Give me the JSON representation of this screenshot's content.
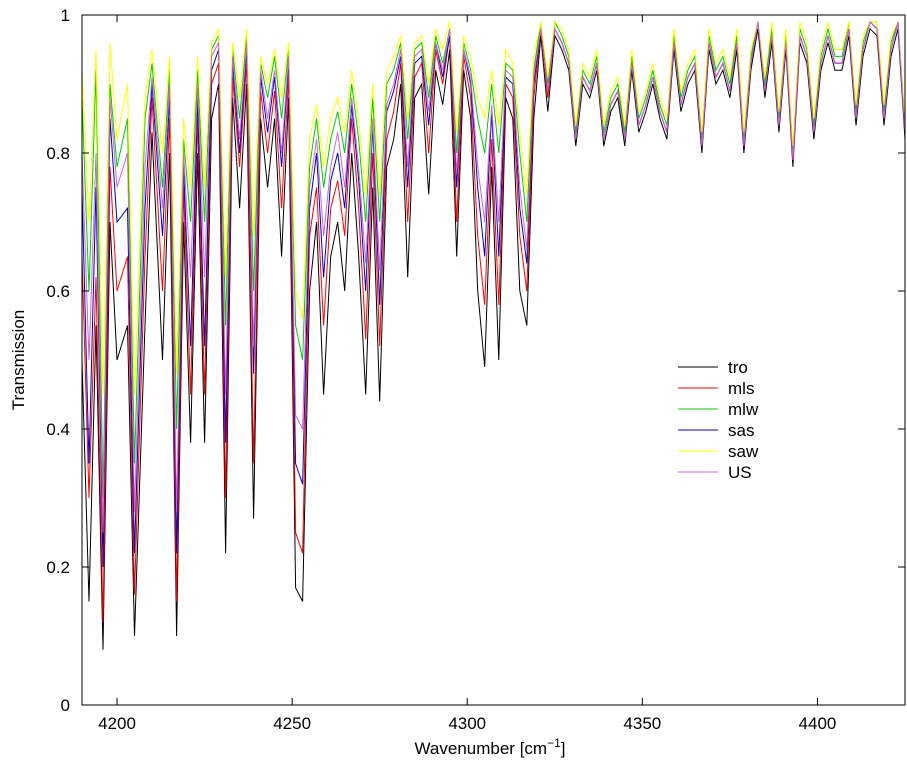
{
  "chart_data": {
    "type": "line",
    "title": "",
    "xlabel": "Wavenumber [cm",
    "xlabel_sup": "−1",
    "xlabel_end": "]",
    "ylabel": "Transmission",
    "xlim": [
      4190,
      4425
    ],
    "ylim": [
      0,
      1
    ],
    "x_ticks": [
      4200,
      4250,
      4300,
      4350,
      4400
    ],
    "y_ticks": [
      0,
      0.2,
      0.4,
      0.6,
      0.8,
      1
    ],
    "y_tick_labels": [
      "0",
      "0.2",
      "0.4",
      "0.6",
      "0.8",
      "1"
    ],
    "grid": false,
    "legend_position": "center-right",
    "x": [
      4190,
      4192,
      4194,
      4196,
      4198,
      4200,
      4203,
      4205,
      4208,
      4210,
      4213,
      4215,
      4217,
      4219,
      4221,
      4223,
      4225,
      4227,
      4229,
      4231,
      4233,
      4235,
      4237,
      4239,
      4241,
      4243,
      4245,
      4247,
      4249,
      4251,
      4253,
      4255,
      4257,
      4259,
      4261,
      4263,
      4265,
      4267,
      4269,
      4271,
      4273,
      4275,
      4277,
      4279,
      4281,
      4283,
      4285,
      4287,
      4289,
      4291,
      4293,
      4295,
      4297,
      4299,
      4301,
      4303,
      4305,
      4307,
      4309,
      4311,
      4313,
      4315,
      4317,
      4319,
      4321,
      4323,
      4325,
      4327,
      4329,
      4331,
      4333,
      4335,
      4337,
      4339,
      4341,
      4343,
      4345,
      4347,
      4349,
      4351,
      4353,
      4355,
      4357,
      4359,
      4361,
      4363,
      4365,
      4367,
      4369,
      4371,
      4373,
      4375,
      4377,
      4379,
      4381,
      4383,
      4385,
      4387,
      4389,
      4391,
      4393,
      4395,
      4397,
      4399,
      4401,
      4403,
      4405,
      4407,
      4409,
      4411,
      4413,
      4415,
      4417,
      4419,
      4421,
      4423,
      4425
    ],
    "series": [
      {
        "name": "tro",
        "color": "#000000",
        "values": [
          0.5,
          0.15,
          0.55,
          0.08,
          0.7,
          0.5,
          0.55,
          0.1,
          0.55,
          0.83,
          0.5,
          0.8,
          0.1,
          0.7,
          0.38,
          0.8,
          0.38,
          0.85,
          0.9,
          0.22,
          0.88,
          0.72,
          0.9,
          0.27,
          0.85,
          0.75,
          0.85,
          0.65,
          0.88,
          0.17,
          0.15,
          0.6,
          0.7,
          0.45,
          0.65,
          0.7,
          0.6,
          0.8,
          0.65,
          0.45,
          0.75,
          0.44,
          0.78,
          0.82,
          0.9,
          0.62,
          0.88,
          0.9,
          0.74,
          0.92,
          0.87,
          0.95,
          0.65,
          0.92,
          0.85,
          0.6,
          0.49,
          0.78,
          0.5,
          0.88,
          0.85,
          0.6,
          0.55,
          0.85,
          0.97,
          0.86,
          0.97,
          0.95,
          0.92,
          0.81,
          0.9,
          0.88,
          0.92,
          0.81,
          0.86,
          0.88,
          0.81,
          0.92,
          0.83,
          0.86,
          0.9,
          0.85,
          0.82,
          0.95,
          0.86,
          0.9,
          0.92,
          0.8,
          0.95,
          0.9,
          0.92,
          0.88,
          0.95,
          0.8,
          0.92,
          0.98,
          0.88,
          0.96,
          0.83,
          0.95,
          0.78,
          0.96,
          0.93,
          0.82,
          0.92,
          0.96,
          0.92,
          0.92,
          0.97,
          0.84,
          0.94,
          0.98,
          0.97,
          0.84,
          0.94,
          0.98,
          0.82
        ]
      },
      {
        "name": "mls",
        "color": "#ff0000",
        "values": [
          0.65,
          0.3,
          0.62,
          0.12,
          0.78,
          0.6,
          0.65,
          0.16,
          0.65,
          0.88,
          0.6,
          0.85,
          0.15,
          0.75,
          0.45,
          0.85,
          0.45,
          0.9,
          0.93,
          0.3,
          0.91,
          0.78,
          0.93,
          0.35,
          0.89,
          0.8,
          0.89,
          0.72,
          0.91,
          0.25,
          0.22,
          0.68,
          0.75,
          0.55,
          0.72,
          0.76,
          0.68,
          0.85,
          0.72,
          0.53,
          0.8,
          0.52,
          0.82,
          0.86,
          0.93,
          0.7,
          0.91,
          0.93,
          0.8,
          0.95,
          0.9,
          0.97,
          0.7,
          0.94,
          0.88,
          0.68,
          0.58,
          0.82,
          0.58,
          0.9,
          0.88,
          0.68,
          0.6,
          0.88,
          0.98,
          0.88,
          0.98,
          0.96,
          0.93,
          0.82,
          0.91,
          0.89,
          0.93,
          0.82,
          0.87,
          0.89,
          0.82,
          0.93,
          0.84,
          0.87,
          0.91,
          0.86,
          0.83,
          0.96,
          0.87,
          0.91,
          0.93,
          0.81,
          0.96,
          0.91,
          0.93,
          0.89,
          0.96,
          0.81,
          0.93,
          0.99,
          0.89,
          0.97,
          0.84,
          0.96,
          0.79,
          0.97,
          0.94,
          0.83,
          0.93,
          0.97,
          0.93,
          0.93,
          0.98,
          0.85,
          0.95,
          0.99,
          0.98,
          0.85,
          0.95,
          0.99,
          0.83
        ]
      },
      {
        "name": "mlw",
        "color": "#00cc00",
        "values": [
          0.88,
          0.6,
          0.92,
          0.3,
          0.9,
          0.78,
          0.85,
          0.35,
          0.85,
          0.93,
          0.75,
          0.92,
          0.4,
          0.82,
          0.7,
          0.92,
          0.7,
          0.95,
          0.97,
          0.55,
          0.95,
          0.85,
          0.97,
          0.6,
          0.93,
          0.88,
          0.94,
          0.85,
          0.95,
          0.55,
          0.5,
          0.78,
          0.85,
          0.75,
          0.82,
          0.86,
          0.8,
          0.9,
          0.82,
          0.7,
          0.88,
          0.7,
          0.9,
          0.92,
          0.96,
          0.82,
          0.95,
          0.96,
          0.88,
          0.97,
          0.93,
          0.98,
          0.8,
          0.96,
          0.92,
          0.85,
          0.8,
          0.9,
          0.8,
          0.93,
          0.92,
          0.8,
          0.7,
          0.92,
          0.99,
          0.9,
          0.99,
          0.97,
          0.94,
          0.83,
          0.92,
          0.9,
          0.94,
          0.83,
          0.88,
          0.9,
          0.83,
          0.94,
          0.85,
          0.88,
          0.92,
          0.87,
          0.84,
          0.97,
          0.88,
          0.92,
          0.94,
          0.82,
          0.97,
          0.92,
          0.94,
          0.9,
          0.97,
          0.82,
          0.94,
          0.99,
          0.9,
          0.98,
          0.85,
          0.97,
          0.8,
          0.98,
          0.95,
          0.84,
          0.94,
          0.98,
          0.94,
          0.94,
          0.99,
          0.86,
          0.96,
          0.99,
          0.99,
          0.86,
          0.96,
          0.99,
          0.84
        ]
      },
      {
        "name": "sas",
        "color": "#0000cc",
        "values": [
          0.75,
          0.35,
          0.75,
          0.2,
          0.85,
          0.7,
          0.72,
          0.22,
          0.72,
          0.9,
          0.68,
          0.88,
          0.22,
          0.78,
          0.52,
          0.88,
          0.52,
          0.92,
          0.95,
          0.38,
          0.93,
          0.8,
          0.95,
          0.48,
          0.91,
          0.83,
          0.91,
          0.78,
          0.93,
          0.35,
          0.32,
          0.72,
          0.8,
          0.62,
          0.76,
          0.8,
          0.72,
          0.87,
          0.76,
          0.6,
          0.84,
          0.58,
          0.86,
          0.89,
          0.94,
          0.75,
          0.93,
          0.94,
          0.84,
          0.96,
          0.91,
          0.97,
          0.75,
          0.95,
          0.9,
          0.75,
          0.65,
          0.86,
          0.65,
          0.91,
          0.9,
          0.72,
          0.64,
          0.9,
          0.98,
          0.89,
          0.98,
          0.96,
          0.93,
          0.82,
          0.91,
          0.89,
          0.93,
          0.82,
          0.87,
          0.89,
          0.82,
          0.93,
          0.84,
          0.87,
          0.91,
          0.86,
          0.83,
          0.96,
          0.87,
          0.91,
          0.93,
          0.81,
          0.96,
          0.91,
          0.93,
          0.89,
          0.96,
          0.81,
          0.93,
          0.99,
          0.89,
          0.97,
          0.84,
          0.96,
          0.79,
          0.97,
          0.94,
          0.83,
          0.93,
          0.97,
          0.93,
          0.93,
          0.98,
          0.85,
          0.95,
          0.99,
          0.98,
          0.85,
          0.95,
          0.99,
          0.83
        ]
      },
      {
        "name": "saw",
        "color": "#ffff00",
        "values": [
          0.92,
          0.7,
          0.95,
          0.45,
          0.96,
          0.82,
          0.9,
          0.45,
          0.88,
          0.95,
          0.8,
          0.94,
          0.48,
          0.85,
          0.75,
          0.94,
          0.75,
          0.96,
          0.98,
          0.62,
          0.96,
          0.88,
          0.98,
          0.68,
          0.94,
          0.9,
          0.95,
          0.88,
          0.96,
          0.6,
          0.56,
          0.82,
          0.87,
          0.78,
          0.85,
          0.88,
          0.83,
          0.92,
          0.85,
          0.74,
          0.9,
          0.74,
          0.92,
          0.94,
          0.97,
          0.85,
          0.96,
          0.97,
          0.9,
          0.98,
          0.95,
          0.99,
          0.83,
          0.97,
          0.94,
          0.88,
          0.85,
          0.92,
          0.84,
          0.95,
          0.93,
          0.83,
          0.74,
          0.94,
          0.99,
          0.91,
          0.99,
          0.98,
          0.95,
          0.84,
          0.93,
          0.91,
          0.95,
          0.84,
          0.89,
          0.91,
          0.84,
          0.95,
          0.86,
          0.89,
          0.93,
          0.88,
          0.85,
          0.98,
          0.89,
          0.93,
          0.95,
          0.83,
          0.98,
          0.93,
          0.95,
          0.91,
          0.98,
          0.83,
          0.95,
          0.99,
          0.91,
          0.99,
          0.86,
          0.98,
          0.81,
          0.99,
          0.96,
          0.85,
          0.95,
          0.99,
          0.95,
          0.95,
          0.99,
          0.87,
          0.97,
          0.99,
          0.99,
          0.87,
          0.97,
          0.99,
          0.85
        ]
      },
      {
        "name": "US",
        "color": "#cc66cc",
        "values": [
          0.8,
          0.5,
          0.8,
          0.25,
          0.88,
          0.75,
          0.8,
          0.28,
          0.78,
          0.91,
          0.72,
          0.9,
          0.28,
          0.8,
          0.62,
          0.9,
          0.62,
          0.94,
          0.96,
          0.45,
          0.94,
          0.82,
          0.96,
          0.52,
          0.92,
          0.85,
          0.92,
          0.8,
          0.94,
          0.42,
          0.4,
          0.75,
          0.82,
          0.68,
          0.78,
          0.83,
          0.75,
          0.88,
          0.78,
          0.64,
          0.85,
          0.63,
          0.87,
          0.9,
          0.95,
          0.78,
          0.94,
          0.95,
          0.86,
          0.96,
          0.92,
          0.98,
          0.77,
          0.95,
          0.91,
          0.78,
          0.7,
          0.87,
          0.7,
          0.92,
          0.91,
          0.75,
          0.66,
          0.91,
          0.98,
          0.89,
          0.98,
          0.96,
          0.93,
          0.82,
          0.91,
          0.89,
          0.93,
          0.82,
          0.87,
          0.89,
          0.82,
          0.93,
          0.84,
          0.87,
          0.91,
          0.86,
          0.83,
          0.96,
          0.87,
          0.91,
          0.93,
          0.81,
          0.96,
          0.91,
          0.93,
          0.89,
          0.96,
          0.81,
          0.93,
          0.99,
          0.89,
          0.97,
          0.84,
          0.96,
          0.79,
          0.97,
          0.94,
          0.83,
          0.93,
          0.97,
          0.93,
          0.93,
          0.98,
          0.85,
          0.95,
          0.99,
          0.98,
          0.85,
          0.95,
          0.99,
          0.83
        ]
      }
    ]
  }
}
